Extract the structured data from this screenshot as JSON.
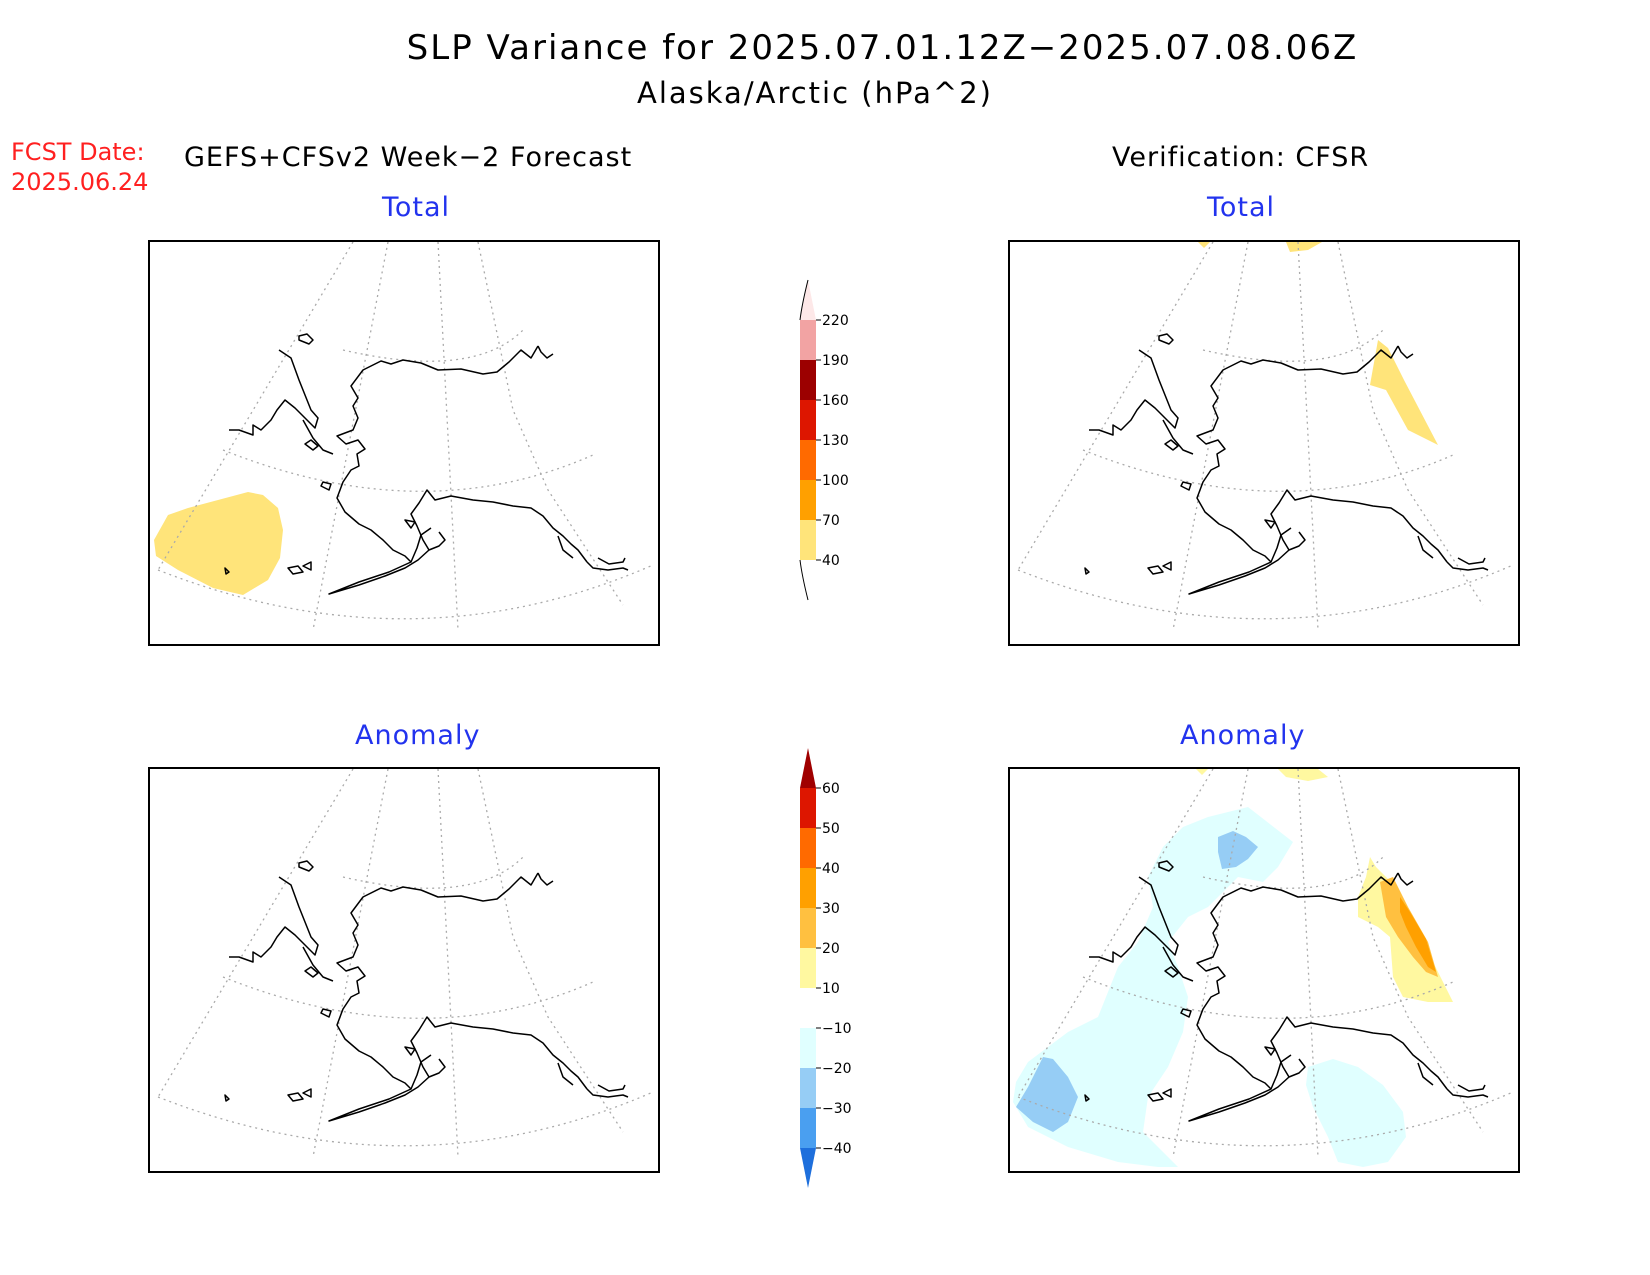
{
  "title": "SLP Variance for 2025.07.01.12Z−2025.07.08.06Z",
  "subtitle": "Alaska/Arctic (hPa^2)",
  "fcst_label": "FCST Date:",
  "fcst_date": "2025.06.24",
  "left_header": "GEFS+CFSv2 Week−2 Forecast",
  "right_header": "Verification: CFSR",
  "panels": {
    "fcst_total": {
      "label": "Total"
    },
    "verif_total": {
      "label": "Total"
    },
    "fcst_anom": {
      "label": "Anomaly"
    },
    "verif_anom": {
      "label": "Anomaly"
    }
  },
  "colorbar_total": {
    "levels": [
      "220",
      "190",
      "160",
      "130",
      "100",
      "70",
      "40"
    ],
    "colors": [
      "#fde8e8",
      "#f2a3a3",
      "#9c0000",
      "#dd1600",
      "#ff6a00",
      "#ffa000",
      "#ffe47a",
      "#ffffff"
    ]
  },
  "colorbar_anom": {
    "levels": [
      "60",
      "50",
      "40",
      "30",
      "20",
      "10",
      "−10",
      "−20",
      "−30",
      "−40"
    ],
    "colors": [
      "#a00000",
      "#dd1600",
      "#ff6a00",
      "#ffa000",
      "#ffc040",
      "#fff8a0",
      "#ffffff",
      "#e0ffff",
      "#96cdf5",
      "#4a9ff0",
      "#1e6fdc"
    ]
  }
}
